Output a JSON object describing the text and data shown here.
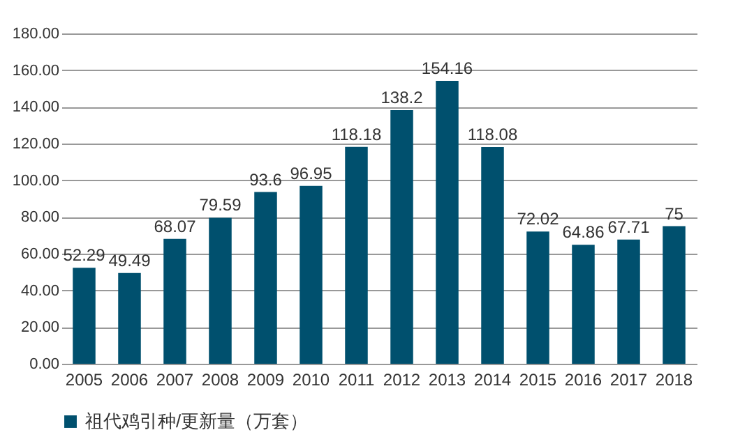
{
  "chart_data": {
    "type": "bar",
    "categories": [
      "2005",
      "2006",
      "2007",
      "2008",
      "2009",
      "2010",
      "2011",
      "2012",
      "2013",
      "2014",
      "2015",
      "2016",
      "2017",
      "2018"
    ],
    "series": [
      {
        "name": "祖代鸡引种/更新量（万套）",
        "color": "#00506e",
        "values": [
          52.29,
          49.49,
          68.07,
          79.59,
          93.6,
          96.95,
          118.18,
          138.2,
          154.16,
          118.08,
          72.02,
          64.86,
          67.71,
          75
        ]
      }
    ],
    "ylim": [
      0,
      180
    ],
    "yticks": [
      {
        "value": 0,
        "label": "0.00"
      },
      {
        "value": 20,
        "label": "20.00"
      },
      {
        "value": 40,
        "label": "40.00"
      },
      {
        "value": 60,
        "label": "60.00"
      },
      {
        "value": 80,
        "label": "80.00"
      },
      {
        "value": 100,
        "label": "100.00"
      },
      {
        "value": 120,
        "label": "120.00"
      },
      {
        "value": 140,
        "label": "140.00"
      },
      {
        "value": 160,
        "label": "160.00"
      },
      {
        "value": 180,
        "label": "180.00"
      }
    ],
    "grid": "y",
    "legend": "bottom",
    "data_labels": true
  }
}
